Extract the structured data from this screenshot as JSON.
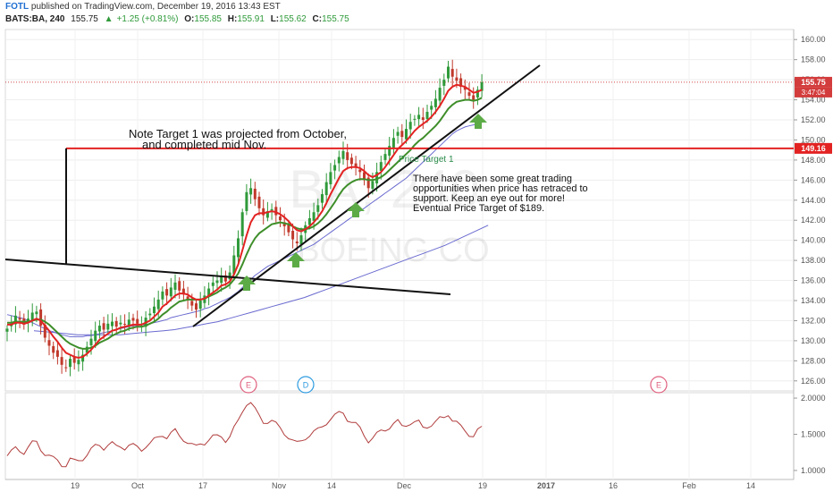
{
  "header": {
    "publisher": "FOTL",
    "published_text": "published on TradingView.com, December 19, 2016 13:43 EST",
    "symbol": "BATS:BA, 240",
    "last": "155.75",
    "change": "+1.25 (+0.81%)",
    "open_label": "O:",
    "open": "155.85",
    "high_label": "H:",
    "high": "155.91",
    "low_label": "L:",
    "low": "155.62",
    "close_label": "C:",
    "close": "155.75"
  },
  "watermark": {
    "symbol": "BA, 240",
    "name": "BOEING CO"
  },
  "price_tags": {
    "last": "155.75",
    "countdown": "3:47:04",
    "target": "149.16"
  },
  "annotations": {
    "note1_line1": "Note Target 1 was projected from October,",
    "note1_line2": "and completed mid Nov.",
    "price_target_label": "Price Target 1",
    "note2_line1": "There have been some great trading",
    "note2_line2": "opportunities when price has retraced to",
    "note2_line3": "support. Keep an eye out for more!",
    "note2_line4": "Eventual Price Target of $189."
  },
  "events": [
    {
      "label": "E",
      "kind": "earnings",
      "color": "#e0607e",
      "at": "Oct 26"
    },
    {
      "label": "D",
      "kind": "dividend",
      "color": "#2d9be0",
      "at": "Nov 8"
    },
    {
      "label": "E",
      "kind": "earnings",
      "color": "#e0607e",
      "at": "Jan 25"
    }
  ],
  "colors": {
    "up": "#2f9a3a",
    "down": "#c0392b",
    "ema_fast": "#e32222",
    "ema_mid": "#3e8e2a",
    "sma_slow": "#6a6ad0",
    "lower": "#b03a3a",
    "target_line": "#e32222",
    "arrow": "#5cab46"
  },
  "chart_data": {
    "type": "candlestick",
    "x_ticks": [
      "19",
      "Oct",
      "17",
      "Nov",
      "14",
      "Dec",
      "19",
      "2017",
      "16",
      "Feb",
      "14"
    ],
    "y_ticks": [
      "126.00",
      "128.00",
      "130.00",
      "132.00",
      "134.00",
      "136.00",
      "138.00",
      "140.00",
      "142.00",
      "144.00",
      "146.00",
      "148.00",
      "150.00",
      "152.00",
      "154.00",
      "156.00",
      "158.00",
      "160.00"
    ],
    "ylim": [
      125,
      161
    ],
    "price_target": 149.16,
    "last_price": 155.75,
    "close_series": [
      131.2,
      131.7,
      132.5,
      132.1,
      131.6,
      132.2,
      132.8,
      132.9,
      131.5,
      130.3,
      129.5,
      128.8,
      128.4,
      127.6,
      127.3,
      128.2,
      127.8,
      128.1,
      128.6,
      129.4,
      130.2,
      131.0,
      131.5,
      131.1,
      131.7,
      131.9,
      131.4,
      131.8,
      131.6,
      132.1,
      132.0,
      131.7,
      131.5,
      132.3,
      132.7,
      133.4,
      134.1,
      134.9,
      134.5,
      135.3,
      135.8,
      135.0,
      134.6,
      134.1,
      133.5,
      133.1,
      134.0,
      134.5,
      135.2,
      135.8,
      136.0,
      136.4,
      135.9,
      136.8,
      138.5,
      140.2,
      142.8,
      144.8,
      145.2,
      144.1,
      143.2,
      142.5,
      142.9,
      143.1,
      142.5,
      142.0,
      141.4,
      140.8,
      140.1,
      139.7,
      140.5,
      141.5,
      142.2,
      142.8,
      143.5,
      144.6,
      145.8,
      146.8,
      147.5,
      148.3,
      148.9,
      148.0,
      147.6,
      147.3,
      146.8,
      146.0,
      145.2,
      145.9,
      146.8,
      147.8,
      148.6,
      149.4,
      150.2,
      150.8,
      150.3,
      151.1,
      151.8,
      152.1,
      152.5,
      152.0,
      152.8,
      153.4,
      154.1,
      155.2,
      156.0,
      157.3,
      156.3,
      155.9,
      155.3,
      155.0,
      154.4,
      154.0,
      155.0,
      155.75
    ],
    "ema_fast": [
      131.6,
      131.6,
      131.8,
      131.8,
      131.7,
      131.8,
      132.0,
      132.2,
      132.0,
      131.5,
      131.0,
      130.4,
      129.9,
      129.3,
      128.8,
      128.6,
      128.4,
      128.3,
      128.4,
      128.7,
      129.1,
      129.6,
      130.1,
      130.4,
      130.7,
      131.0,
      131.1,
      131.3,
      131.4,
      131.5,
      131.6,
      131.6,
      131.6,
      131.8,
      132.0,
      132.4,
      132.8,
      133.4,
      133.7,
      134.1,
      134.5,
      134.7,
      134.7,
      134.6,
      134.3,
      134.1,
      134.1,
      134.2,
      134.5,
      134.8,
      135.1,
      135.5,
      135.6,
      135.9,
      136.6,
      137.6,
      139.0,
      140.5,
      141.8,
      142.5,
      142.7,
      142.7,
      142.8,
      142.9,
      142.8,
      142.6,
      142.3,
      141.9,
      141.4,
      141.0,
      140.9,
      141.1,
      141.4,
      141.8,
      142.3,
      142.9,
      143.7,
      144.6,
      145.4,
      146.2,
      146.9,
      147.2,
      147.3,
      147.3,
      147.2,
      146.9,
      146.5,
      146.3,
      146.5,
      146.8,
      147.3,
      147.9,
      148.5,
      149.1,
      149.5,
      149.9,
      150.4,
      150.9,
      151.3,
      151.6,
      151.9,
      152.3,
      152.8,
      153.4,
      154.1,
      154.9,
      155.3,
      155.5,
      155.4,
      155.3,
      155.0,
      154.7,
      154.8,
      155.0
    ],
    "ema_mid": [
      131.8,
      131.8,
      131.9,
      131.9,
      131.9,
      131.9,
      132.0,
      132.1,
      132.1,
      131.9,
      131.6,
      131.2,
      130.8,
      130.4,
      130.0,
      129.7,
      129.5,
      129.3,
      129.2,
      129.2,
      129.3,
      129.5,
      129.8,
      130.0,
      130.2,
      130.5,
      130.7,
      130.9,
      131.0,
      131.2,
      131.3,
      131.4,
      131.4,
      131.5,
      131.7,
      131.9,
      132.2,
      132.6,
      132.9,
      133.3,
      133.6,
      133.9,
      134.0,
      134.1,
      134.1,
      134.1,
      134.1,
      134.2,
      134.4,
      134.6,
      134.8,
      135.1,
      135.3,
      135.6,
      136.1,
      136.7,
      137.6,
      138.6,
      139.5,
      140.2,
      140.7,
      141.0,
      141.3,
      141.6,
      141.7,
      141.8,
      141.7,
      141.6,
      141.4,
      141.2,
      141.1,
      141.1,
      141.2,
      141.4,
      141.7,
      142.1,
      142.6,
      143.2,
      143.8,
      144.5,
      145.1,
      145.5,
      145.8,
      146.0,
      146.1,
      146.1,
      146.0,
      146.0,
      146.1,
      146.3,
      146.6,
      147.0,
      147.4,
      147.8,
      148.2,
      148.6,
      149.0,
      149.5,
      149.9,
      150.2,
      150.6,
      151.0,
      151.4,
      151.9,
      152.5,
      153.1,
      153.5,
      153.8,
      153.9,
      154.0,
      154.0,
      153.9,
      154.0,
      154.2
    ],
    "sma_slow": [
      132.6,
      132.5,
      132.4,
      132.3,
      132.2,
      132.0,
      131.8,
      131.6,
      131.4,
      131.2,
      131.0,
      130.9,
      130.7,
      130.6,
      130.5,
      130.4,
      130.4,
      130.4,
      130.4,
      130.5,
      130.5,
      130.6,
      130.7,
      130.8,
      130.9,
      131.0,
      131.1,
      131.2,
      131.3,
      131.4,
      131.5,
      131.5,
      131.6,
      131.6,
      131.7,
      131.8,
      131.9,
      132.0,
      132.1,
      132.3,
      132.4,
      132.5,
      132.6,
      132.7,
      132.8,
      132.9,
      133.0,
      133.2,
      133.3,
      133.5,
      133.7,
      133.9,
      134.1,
      134.3,
      134.6,
      134.9,
      135.3,
      135.7,
      136.1,
      136.5,
      136.8,
      137.1,
      137.4,
      137.6,
      137.8,
      138.0,
      138.2,
      138.4,
      138.6,
      138.8,
      139.0,
      139.2,
      139.4,
      139.6,
      139.9,
      140.2,
      140.5,
      140.8,
      141.1,
      141.4,
      141.7,
      142.0,
      142.3,
      142.6,
      142.9,
      143.2,
      143.5,
      143.8,
      144.1,
      144.4,
      144.7,
      145.0,
      145.3,
      145.6,
      145.9,
      146.2,
      146.6,
      147.0,
      147.4,
      147.8,
      148.2,
      148.6,
      149.0,
      149.4,
      149.8,
      150.2,
      150.6,
      150.9,
      151.1,
      151.3,
      151.4,
      151.5,
      151.6,
      151.7
    ],
    "sma_long": [
      131.0,
      130.9,
      130.8,
      130.7,
      130.6,
      130.6,
      130.6,
      130.6,
      130.6,
      130.7,
      130.8,
      130.9,
      131.0,
      131.1,
      131.3,
      131.5,
      131.7,
      131.9,
      132.2,
      132.5,
      132.8,
      133.1,
      133.4,
      133.7,
      134.0,
      134.3,
      134.7,
      135.1,
      135.5,
      135.9,
      136.3,
      136.7,
      137.1,
      137.5,
      137.9,
      138.3,
      138.7,
      139.1,
      139.5,
      140.0,
      140.5,
      141.0,
      141.5
    ],
    "lower_panel": {
      "ylim": [
        0.9,
        2.05
      ],
      "ticks": [
        "1.0000",
        "1.5000",
        "2.0000"
      ]
    }
  }
}
